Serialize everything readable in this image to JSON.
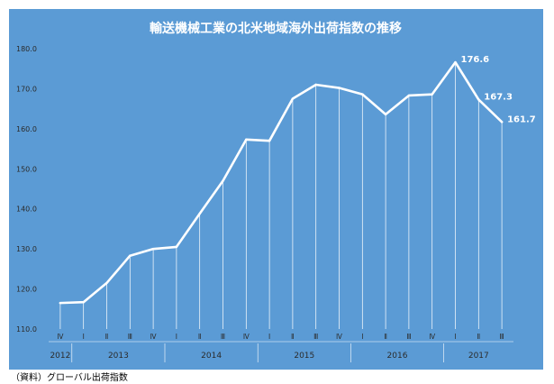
{
  "chart_data": {
    "type": "line",
    "title": "輸送機械工業の北米地域海外出荷指数の推移",
    "xlabel": "",
    "ylabel": "",
    "ylim": [
      110,
      180
    ],
    "yticks": [
      "110.0",
      "120.0",
      "130.0",
      "140.0",
      "150.0",
      "160.0",
      "170.0",
      "180.0"
    ],
    "grid": false,
    "legend": "none",
    "quarters": [
      "Ⅳ",
      "Ⅰ",
      "Ⅱ",
      "Ⅲ",
      "Ⅳ",
      "Ⅰ",
      "Ⅱ",
      "Ⅲ",
      "Ⅳ",
      "Ⅰ",
      "Ⅱ",
      "Ⅲ",
      "Ⅳ",
      "Ⅰ",
      "Ⅱ",
      "Ⅲ",
      "Ⅳ",
      "Ⅰ",
      "Ⅱ",
      "Ⅲ"
    ],
    "years": [
      {
        "label": "2012",
        "span": 1
      },
      {
        "label": "2013",
        "span": 4
      },
      {
        "label": "2014",
        "span": 4
      },
      {
        "label": "2015",
        "span": 4
      },
      {
        "label": "2016",
        "span": 4
      },
      {
        "label": "2017",
        "span": 3
      }
    ],
    "values": [
      116.5,
      116.7,
      121.5,
      128.3,
      130.0,
      130.5,
      138.8,
      147.0,
      157.3,
      157.0,
      167.5,
      171.0,
      170.2,
      168.6,
      163.6,
      168.3,
      168.6,
      176.6,
      167.3,
      161.7
    ],
    "data_labels": [
      {
        "index": 17,
        "text": "176.6"
      },
      {
        "index": 18,
        "text": "167.3"
      },
      {
        "index": 19,
        "text": "161.7"
      }
    ]
  },
  "colors": {
    "background": "#5b9bd5",
    "line": "#ffffff",
    "text": "#ffffff",
    "axis_text": "#2b2b2b"
  },
  "source_note": "（資料）グローバル出荷指数"
}
